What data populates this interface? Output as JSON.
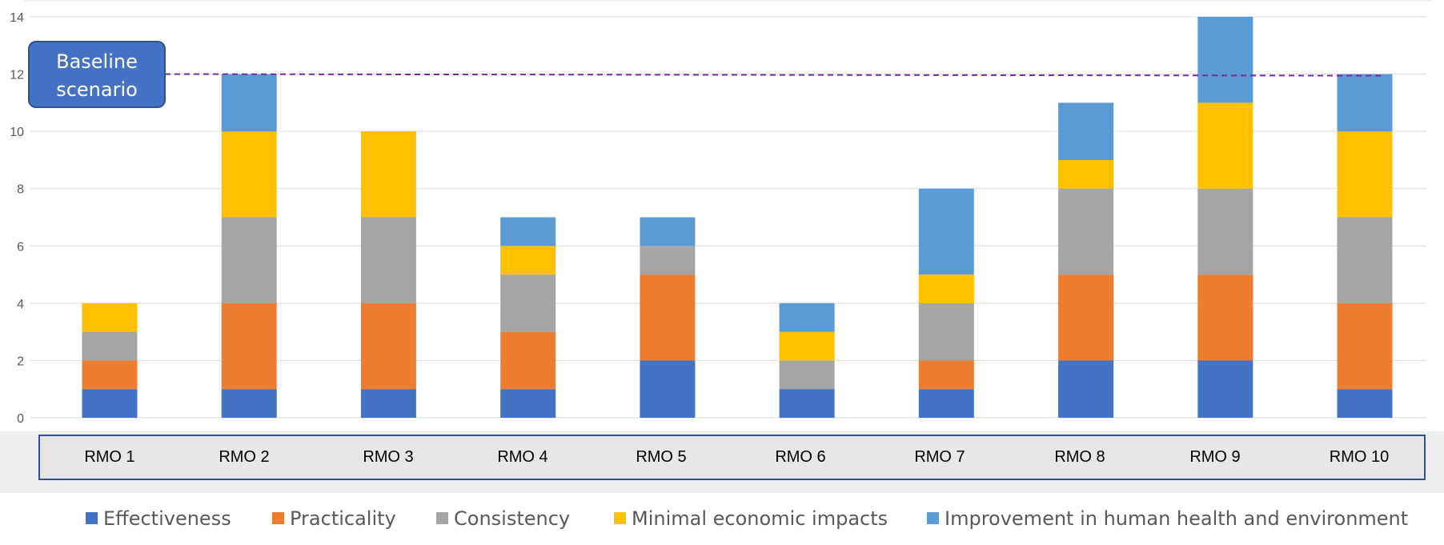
{
  "chart_data": {
    "type": "bar",
    "stacked": true,
    "categories": [
      "RMO 1",
      "RMO 2",
      "RMO 3",
      "RMO 4",
      "RMO 5",
      "RMO 6",
      "RMO 7",
      "RMO 8",
      "RMO 9",
      "RMO 10"
    ],
    "series": [
      {
        "name": "Effectiveness",
        "color": "#4472C4",
        "values": [
          1,
          1,
          1,
          1,
          2,
          1,
          1,
          2,
          2,
          1
        ]
      },
      {
        "name": "Practicality",
        "color": "#ED7D31",
        "values": [
          1,
          3,
          3,
          2,
          3,
          0,
          1,
          3,
          3,
          3
        ]
      },
      {
        "name": "Consistency",
        "color": "#A5A5A5",
        "values": [
          1,
          3,
          3,
          2,
          1,
          1,
          2,
          3,
          3,
          3
        ]
      },
      {
        "name": "Minimal economic impacts",
        "color": "#FFC000",
        "values": [
          1,
          3,
          3,
          1,
          0,
          1,
          1,
          1,
          3,
          3
        ]
      },
      {
        "name": "Improvement in human health and environment",
        "color": "#5B9BD5",
        "values": [
          0,
          2,
          0,
          1,
          1,
          1,
          3,
          2,
          3,
          2
        ]
      }
    ],
    "ylim": [
      0,
      14
    ],
    "yticks": [
      "0",
      "2",
      "4",
      "6",
      "8",
      "10",
      "12",
      "14"
    ],
    "grid": true,
    "legend_position": "bottom",
    "reference_line": {
      "y": 12,
      "color": "#7030A0",
      "style": "dashed"
    },
    "annotation": {
      "lines": [
        "Baseline",
        "scenario"
      ],
      "color": "#4472C4"
    }
  }
}
